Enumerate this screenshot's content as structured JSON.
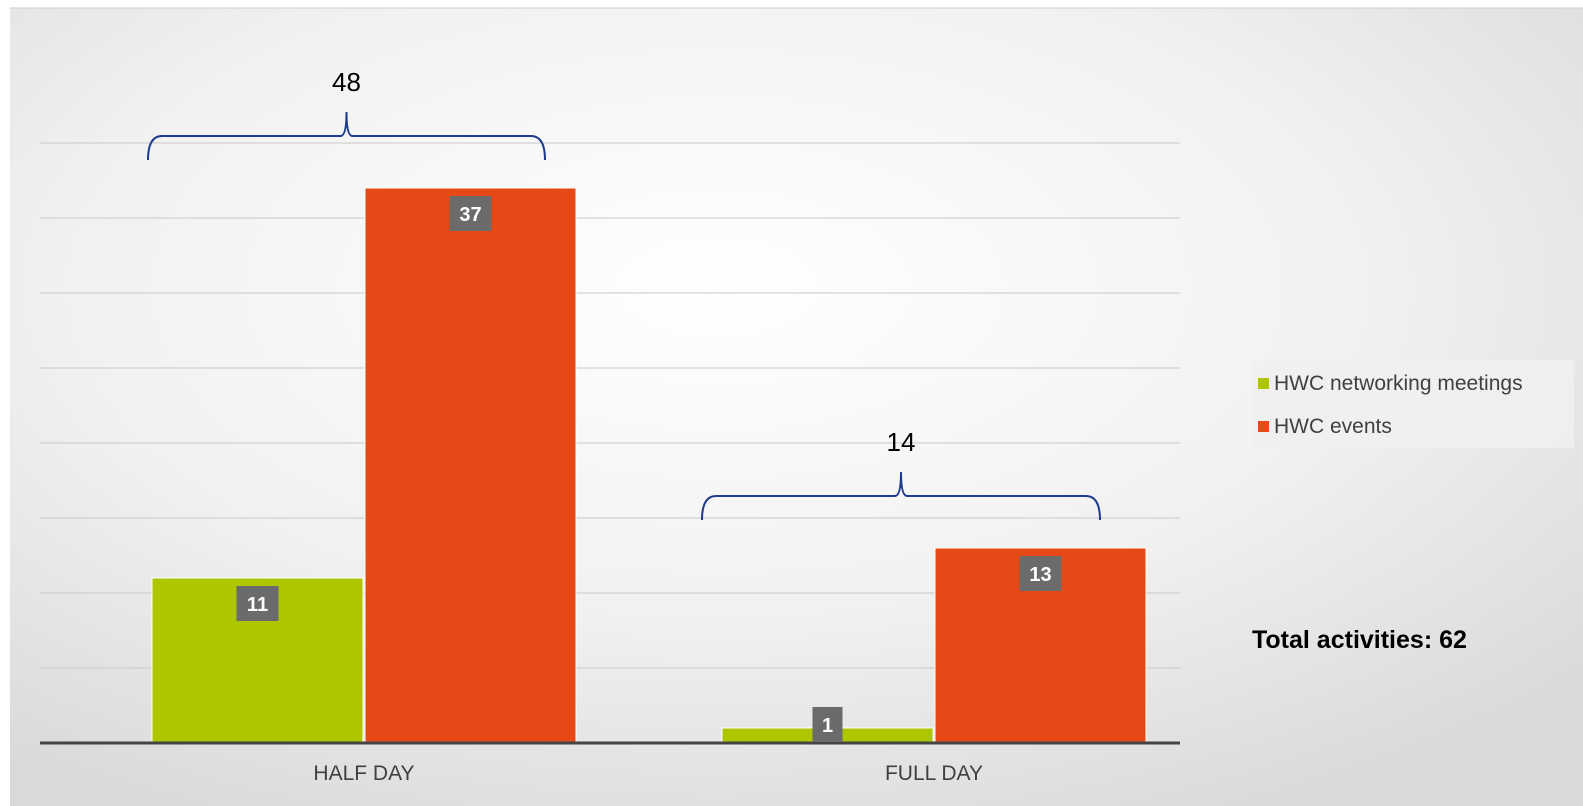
{
  "chart_data": {
    "type": "bar",
    "categories": [
      "HALF DAY",
      "FULL DAY"
    ],
    "series": [
      {
        "name": "HWC networking meetings",
        "values": [
          11,
          1
        ]
      },
      {
        "name": "HWC events",
        "values": [
          37,
          13
        ]
      }
    ],
    "ylim": [
      0,
      40
    ],
    "grid": true,
    "legend": "right",
    "group_totals": [
      48,
      14
    ],
    "colors": {
      "HWC networking meetings": "#aec600",
      "HWC events": "#e64916",
      "label_box": "#6b6b6b",
      "bracket": "#1f3b8f",
      "axis": "#444444",
      "grid": "#c8c8c8"
    }
  },
  "legend": {
    "items": [
      {
        "label": "HWC networking meetings",
        "color": "#aec600"
      },
      {
        "label": "HWC events",
        "color": "#e64916"
      }
    ]
  },
  "annotation": {
    "total_text": "Total activities: 62"
  }
}
